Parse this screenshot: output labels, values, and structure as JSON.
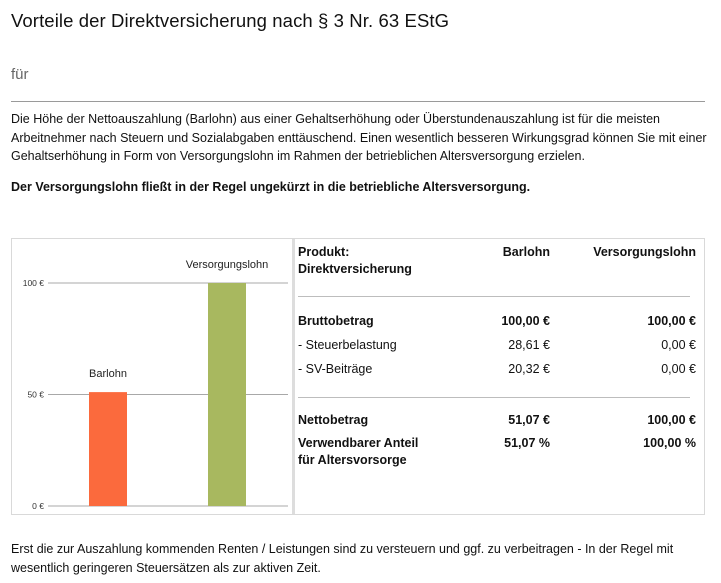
{
  "page": {
    "title": "Vorteile der Direktversicherung nach § 3 Nr. 63 EStG",
    "subtitle": "für",
    "intro": "Die Höhe der Nettoauszahlung (Barlohn) aus einer Gehaltserhöhung oder Überstundenauszahlung ist für die meisten Arbeitnehmer nach Steuern und Sozialabgaben enttäuschend. Einen wesentlich besseren Wirkungsgrad können Sie mit einer Gehaltserhöhung in Form von Versorgungslohn im Rahmen der betrieblichen Altersversorgung erzielen.",
    "emphasis": "Der Versorgungslohn fließt in der Regel ungekürzt in die betriebliche Altersversorgung.",
    "footer": "Erst die zur Auszahlung kommenden Renten / Leistungen sind zu versteuern und ggf. zu verbeitragen - In der Regel mit wesentlich geringeren Steuersätzen als zur aktiven Zeit."
  },
  "chart_data": {
    "type": "bar",
    "categories": [
      "Barlohn",
      "Versorgungslohn"
    ],
    "values": [
      51.07,
      100
    ],
    "colors": [
      "#fb6a3d",
      "#a8b85f"
    ],
    "ylim": [
      0,
      100
    ],
    "yticks": [
      0,
      50,
      100
    ],
    "ytick_labels": [
      "0 €",
      "50 €",
      "100 €"
    ],
    "grid": true
  },
  "table": {
    "header": {
      "product_label": "Produkt:",
      "product_name": "Direktversicherung",
      "col1": "Barlohn",
      "col2": "Versorgungslohn"
    },
    "rows": {
      "brutto": {
        "label": "Bruttobetrag",
        "v1": "100,00 €",
        "v2": "100,00 €"
      },
      "steuer": {
        "label": "- Steuerbelastung",
        "v1": "28,61 €",
        "v2": "0,00 €"
      },
      "sv": {
        "label": "- SV-Beiträge",
        "v1": "20,32 €",
        "v2": "0,00 €"
      },
      "netto": {
        "label": "Nettobetrag",
        "v1": "51,07 €",
        "v2": "100,00 €"
      },
      "anteil_line1": "Verwendbarer Anteil",
      "anteil_line2": "für Altersvorsorge",
      "anteil_v1": "51,07 %",
      "anteil_v2": "100,00 %"
    }
  }
}
